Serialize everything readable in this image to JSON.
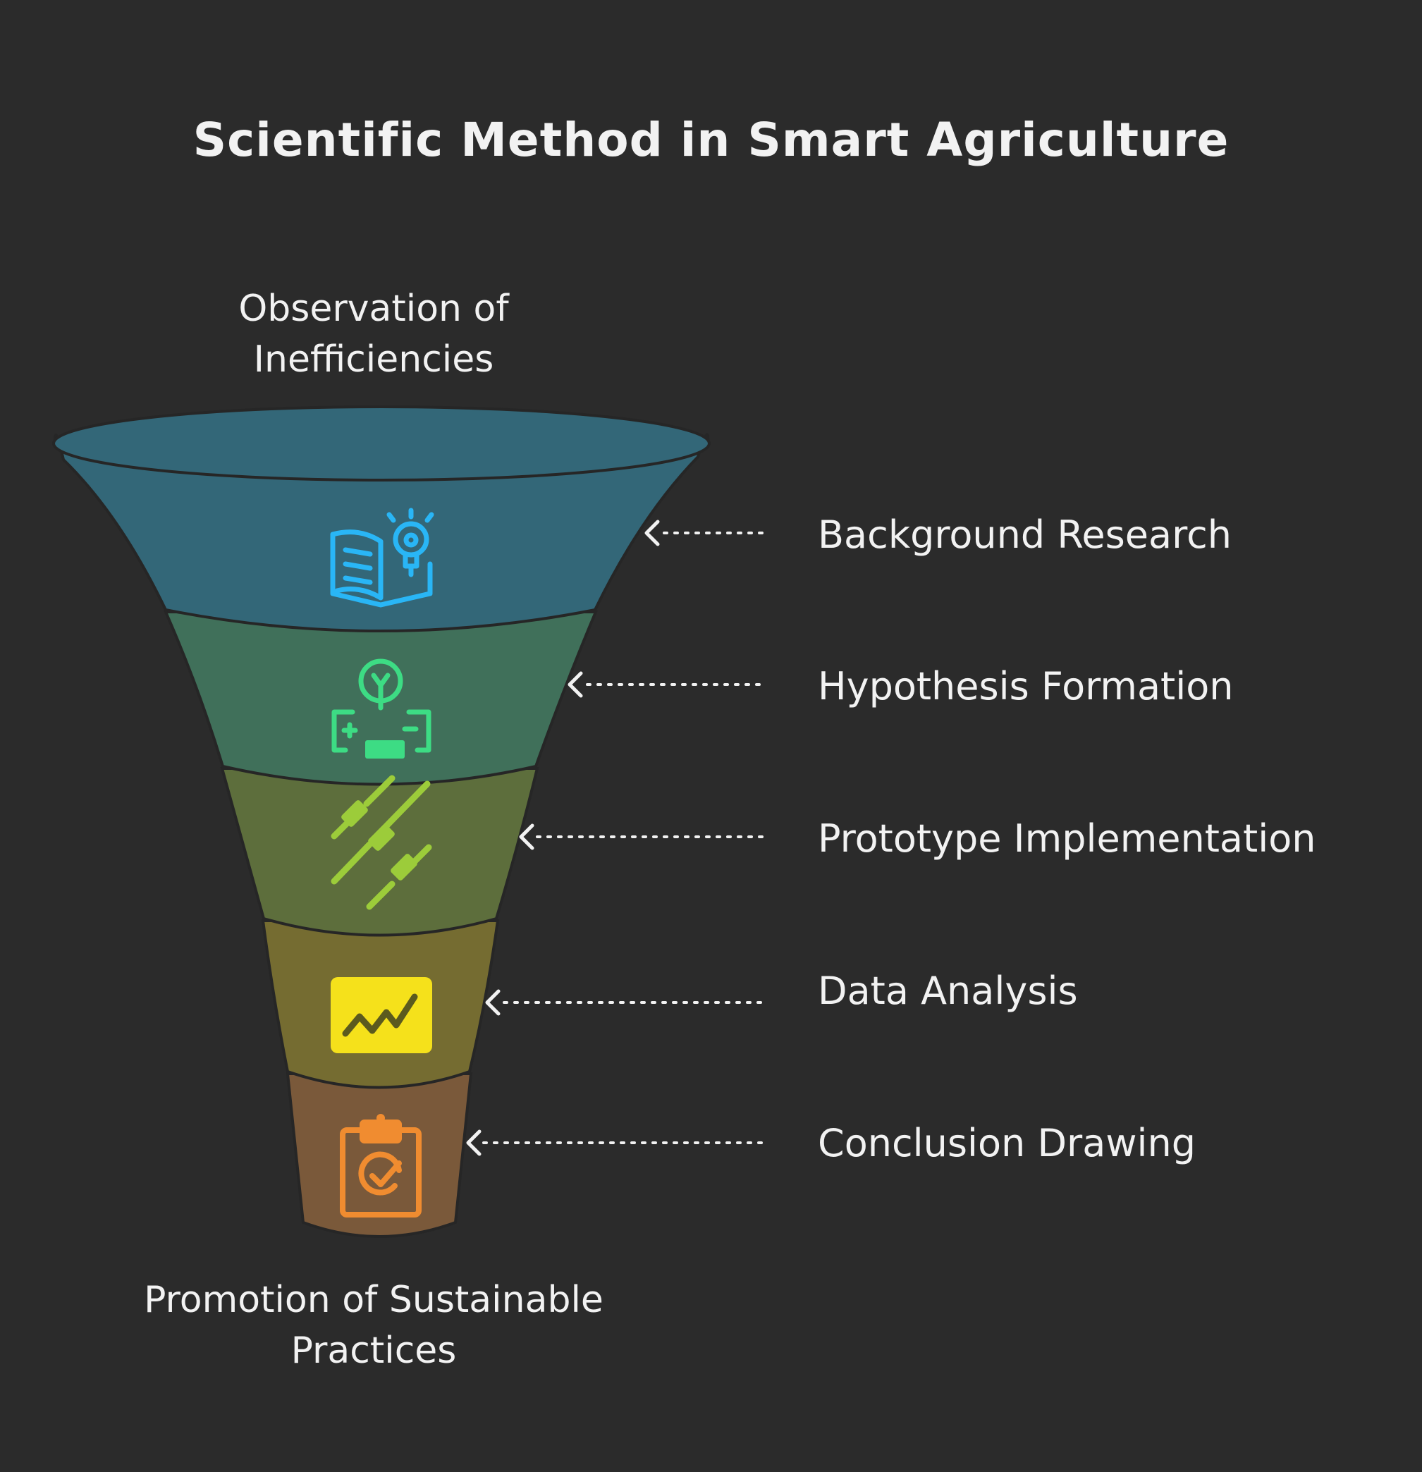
{
  "title": "Scientific Method in Smart Agriculture",
  "top_caption": "Observation of Inefficiencies",
  "bottom_caption": "Promotion of Sustainable Practices",
  "steps": [
    {
      "label": "Background Research",
      "icon": "book-lightbulb-icon",
      "color": "#336778",
      "icon_color": "#29b6f6"
    },
    {
      "label": "Hypothesis Formation",
      "icon": "lightbulb-battery-icon",
      "color": "#40705a",
      "icon_color": "#3ddc84"
    },
    {
      "label": "Prototype Implementation",
      "icon": "sliders-icon",
      "color": "#5d6e3c",
      "icon_color": "#9ccc3a"
    },
    {
      "label": "Data Analysis",
      "icon": "trend-chart-icon",
      "color": "#756c31",
      "icon_color": "#f5e11b"
    },
    {
      "label": "Conclusion Drawing",
      "icon": "clipboard-check-icon",
      "color": "#7a593a",
      "icon_color": "#f08c30"
    }
  ]
}
